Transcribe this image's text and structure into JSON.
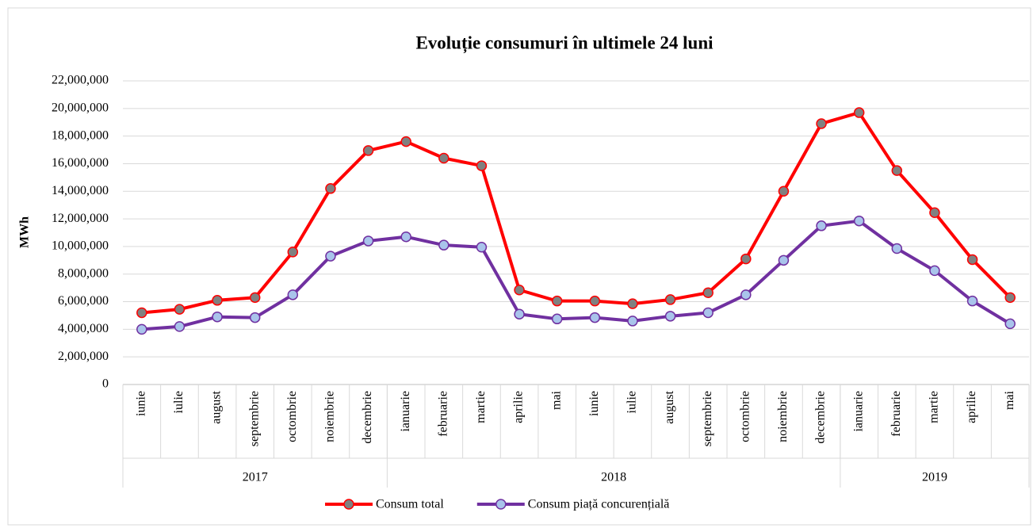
{
  "chart_data": {
    "type": "line",
    "title": "Evoluție consumuri în ultimele 24 luni",
    "y_label": "MWh",
    "categories": [
      "iunie",
      "iulie",
      "august",
      "septembrie",
      "octombrie",
      "noiembrie",
      "decembrie",
      "ianuarie",
      "februarie",
      "martie",
      "aprilie",
      "mai",
      "iunie",
      "iulie",
      "august",
      "septembrie",
      "octombrie",
      "noiembrie",
      "decembrie",
      "ianuarie",
      "februarie",
      "martie",
      "aprilie",
      "mai"
    ],
    "x_groups": [
      {
        "label": "2017",
        "span": 7
      },
      {
        "label": "2018",
        "span": 12
      },
      {
        "label": "2019",
        "span": 5
      }
    ],
    "series": [
      {
        "name": "Consum total",
        "color": "#ff0000",
        "marker_fill": "#808080",
        "values": [
          5200000,
          5450000,
          6100000,
          6300000,
          9600000,
          14200000,
          16950000,
          17600000,
          16400000,
          15850000,
          6850000,
          6050000,
          6050000,
          5850000,
          6150000,
          6650000,
          9100000,
          14000000,
          18900000,
          19700000,
          15500000,
          12450000,
          9050000,
          6300000
        ]
      },
      {
        "name": "Consum piață concurențială",
        "color": "#7030a0",
        "marker_fill": "#a9c4eb",
        "values": [
          4000000,
          4200000,
          4900000,
          4850000,
          6500000,
          9300000,
          10400000,
          10700000,
          10100000,
          9950000,
          5100000,
          4750000,
          4850000,
          4600000,
          4950000,
          5200000,
          6500000,
          9000000,
          11500000,
          11850000,
          9850000,
          8250000,
          6050000,
          4400000
        ]
      }
    ],
    "ylim": [
      0,
      22000000
    ],
    "yticks": [
      0,
      {
        "value": 2000000,
        "label": "2,000,000"
      },
      {
        "value": 4000000,
        "label": "4,000,000"
      },
      {
        "value": 6000000,
        "label": "6,000,000"
      },
      {
        "value": 8000000,
        "label": "8,000,000"
      },
      {
        "value": 10000000,
        "label": "10,000,000"
      },
      {
        "value": 12000000,
        "label": "12,000,000"
      },
      {
        "value": 14000000,
        "label": "14,000,000"
      },
      {
        "value": 16000000,
        "label": "16,000,000"
      },
      {
        "value": 18000000,
        "label": "18,000,000"
      },
      {
        "value": 20000000,
        "label": "20,000,000"
      },
      {
        "value": 22000000,
        "label": "22,000,000"
      }
    ],
    "grid": true,
    "legend": "bottom"
  }
}
